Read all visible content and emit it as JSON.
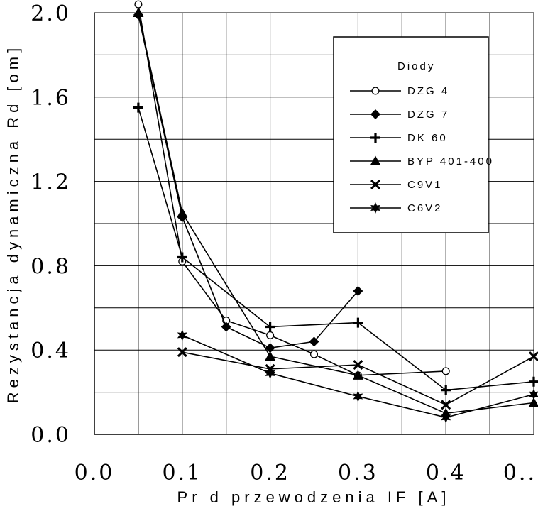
{
  "chart_data": {
    "type": "line",
    "xlabel": "Pr d przewodzenia IF [A]",
    "ylabel": "Rezystancja dynamiczna Rd [om]",
    "xlim": [
      0.0,
      0.5
    ],
    "ylim": [
      0.0,
      2.0
    ],
    "x_ticks": [
      "0.0",
      "0.1",
      "0.2",
      "0.3",
      "0.4",
      "0.."
    ],
    "y_ticks": [
      "0.0",
      "0.4",
      "0.8",
      "1.2",
      "1.6",
      "2.0"
    ],
    "grid": true,
    "legend": {
      "title": "Diody",
      "position": "top-right"
    },
    "series": [
      {
        "name": "DZG 4",
        "marker": "circle",
        "x": [
          0.05,
          0.1,
          0.15,
          0.2,
          0.25,
          0.3,
          0.4
        ],
        "y": [
          2.04,
          0.82,
          0.54,
          0.47,
          0.38,
          0.28,
          0.3
        ]
      },
      {
        "name": "DZG 7",
        "marker": "diamond",
        "x": [
          0.05,
          0.1,
          0.15,
          0.2,
          0.25,
          0.3
        ],
        "y": [
          1.99,
          1.03,
          0.51,
          0.41,
          0.44,
          0.68
        ]
      },
      {
        "name": "DK 60",
        "marker": "plus",
        "x": [
          0.05,
          0.1,
          0.2,
          0.3,
          0.4,
          0.5
        ],
        "y": [
          1.55,
          0.84,
          0.51,
          0.53,
          0.21,
          0.25
        ]
      },
      {
        "name": "BYP 401-400",
        "marker": "triangle",
        "x": [
          0.05,
          0.1,
          0.2,
          0.3,
          0.4,
          0.5
        ],
        "y": [
          2.0,
          1.05,
          0.37,
          0.28,
          0.1,
          0.15
        ]
      },
      {
        "name": "C9V1",
        "marker": "x",
        "x": [
          0.1,
          0.2,
          0.3,
          0.4,
          0.5
        ],
        "y": [
          0.39,
          0.31,
          0.33,
          0.14,
          0.37
        ]
      },
      {
        "name": "C6V2",
        "marker": "star",
        "x": [
          0.1,
          0.2,
          0.3,
          0.4,
          0.5
        ],
        "y": [
          0.47,
          0.29,
          0.18,
          0.08,
          0.19
        ]
      }
    ]
  }
}
